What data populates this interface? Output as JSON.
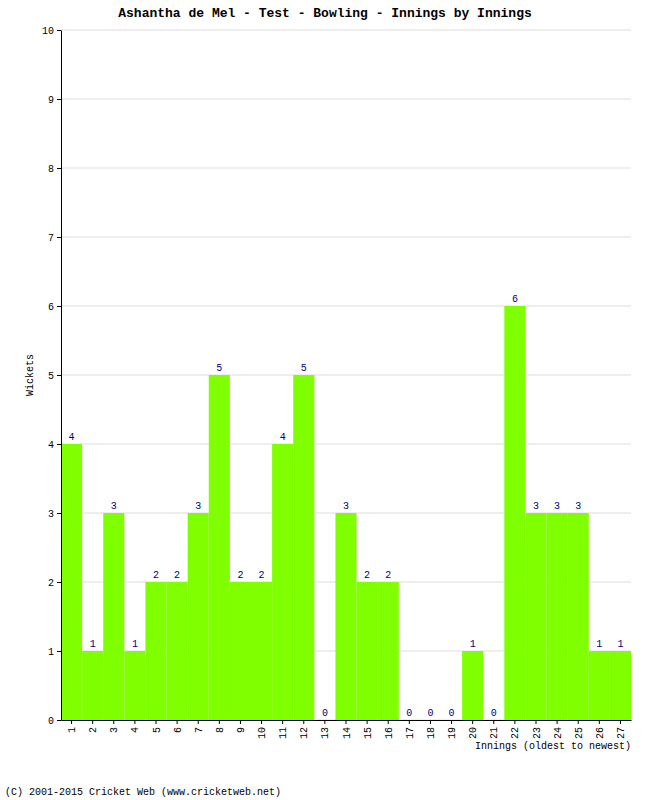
{
  "chart_data": {
    "type": "bar",
    "title": "Ashantha de Mel - Test - Bowling - Innings by Innings",
    "x_label": "Innings (oldest to newest)",
    "y_label": "Wickets",
    "annotations": [
      "(C) 2001-2015 Cricket Web (www.cricketweb.net)"
    ],
    "categories": [
      "1",
      "2",
      "3",
      "4",
      "5",
      "6",
      "7",
      "8",
      "9",
      "10",
      "11",
      "12",
      "13",
      "14",
      "15",
      "16",
      "17",
      "18",
      "19",
      "20",
      "21",
      "22",
      "23",
      "24",
      "25",
      "26",
      "27"
    ],
    "values": [
      4,
      1,
      3,
      1,
      2,
      2,
      3,
      5,
      2,
      2,
      4,
      5,
      0,
      3,
      2,
      2,
      0,
      0,
      0,
      1,
      0,
      6,
      3,
      3,
      3,
      1,
      1
    ],
    "color": "#80ff00",
    "ylim": [
      0,
      10
    ],
    "yticks": [
      0,
      1,
      2,
      3,
      4,
      5,
      6,
      7,
      8,
      9,
      10
    ],
    "grid": true,
    "data_labels": true
  }
}
